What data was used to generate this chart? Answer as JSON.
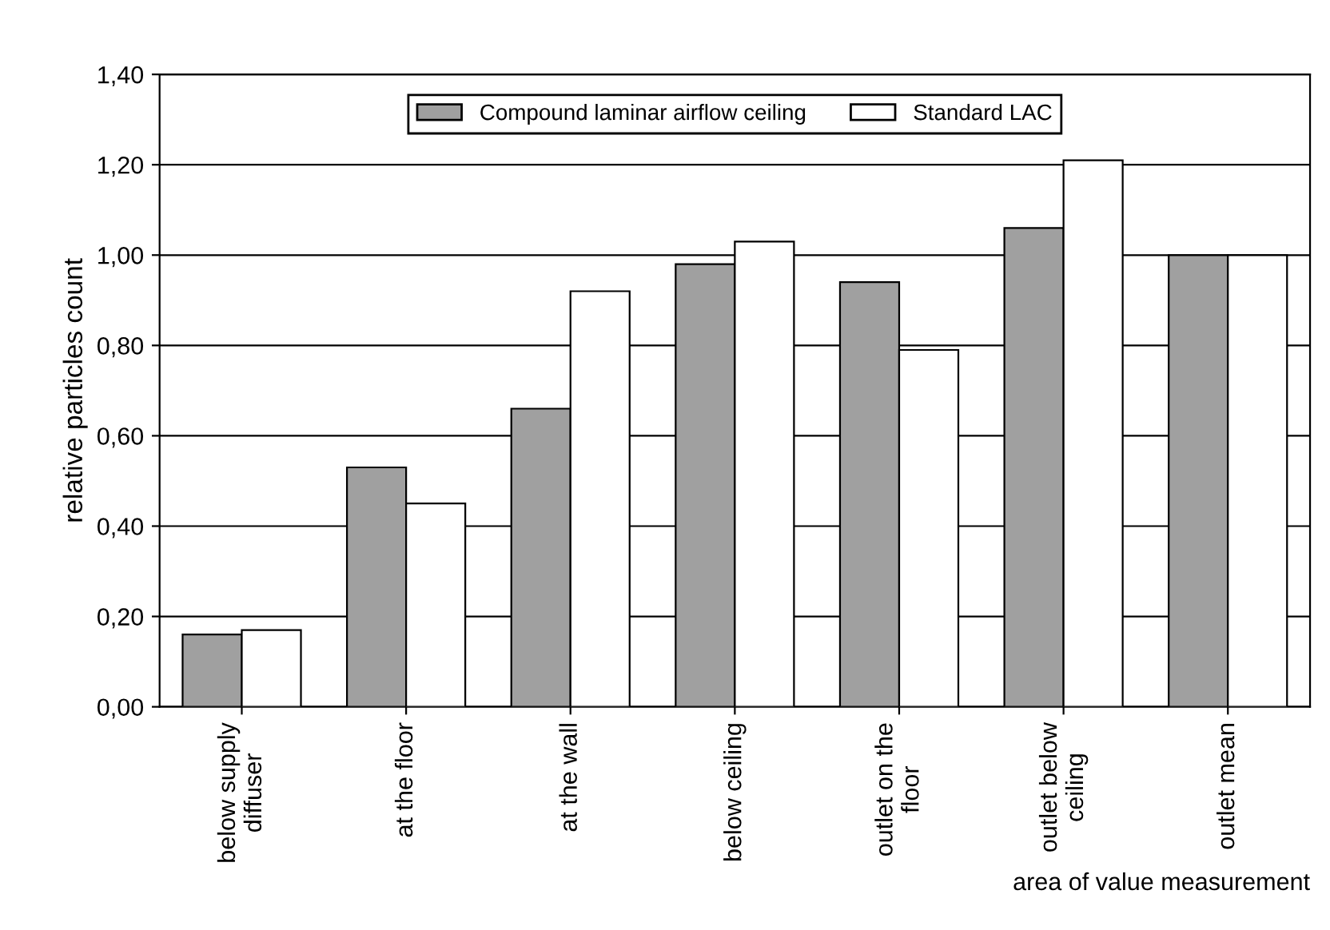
{
  "chart_data": {
    "type": "bar",
    "ylabel": "relative particles count",
    "xlabel": "area of value measurement",
    "categories": [
      "below supply\ndiffuser",
      "at the floor",
      "at the wall",
      "below ceiling",
      "outlet on the\nfloor",
      "outlet below\nceiling",
      "outlet mean"
    ],
    "series": [
      {
        "name": "Compound laminar airflow ceiling",
        "color": "#a0a0a0",
        "values": [
          0.16,
          0.53,
          0.66,
          0.98,
          0.94,
          1.06,
          1.0
        ]
      },
      {
        "name": "Standard LAC",
        "color": "#ffffff",
        "values": [
          0.17,
          0.45,
          0.92,
          1.03,
          0.79,
          1.21,
          1.0
        ]
      }
    ],
    "ylim": [
      0,
      1.4
    ],
    "yticks": [
      {
        "value": 0,
        "label": "0,00"
      },
      {
        "value": 0.2,
        "label": "0,20"
      },
      {
        "value": 0.4,
        "label": "0,40"
      },
      {
        "value": 0.6,
        "label": "0,60"
      },
      {
        "value": 0.8,
        "label": "0,80"
      },
      {
        "value": 1.0,
        "label": "1,00"
      },
      {
        "value": 1.2,
        "label": "1,20"
      },
      {
        "value": 1.4,
        "label": "1,40"
      }
    ],
    "grid": "y",
    "legend": "top"
  }
}
